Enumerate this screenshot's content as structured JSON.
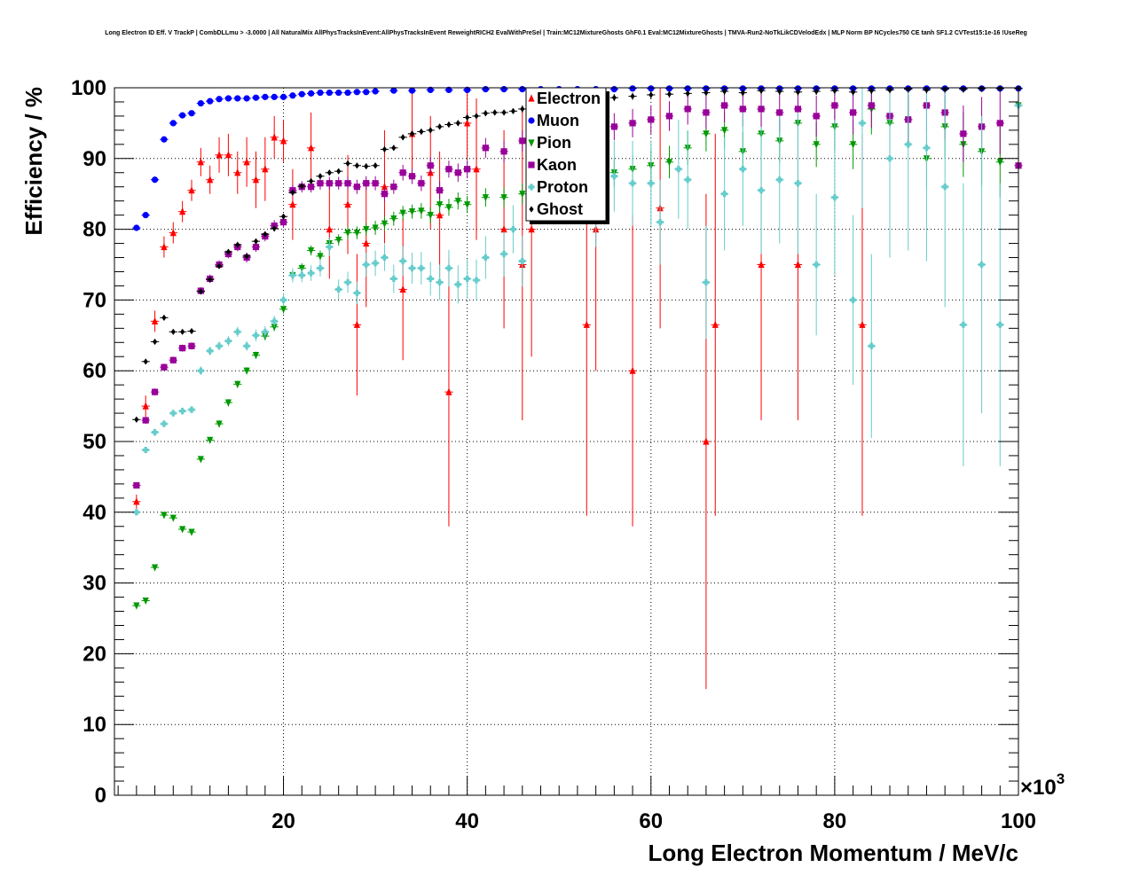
{
  "chart_data": {
    "type": "scatter",
    "title": "Long Electron ID Eff. V TrackP | CombDLLmu > -3.0000 | All NaturalMix AllPhysTracksInEvent:AllPhysTracksInEvent ReweightRICH2 EvalWithPreSel | Train:MC12MixtureGhosts GhF0.1 Eval:MC12MixtureGhosts | TMVA-Run2-NoTkLikCDVelodEdx | MLP Norm BP NCycles750 CE tanh SF1.2 CVTest15:1e-16 !UseReg",
    "xlabel": "Long Electron Momentum / MeV/c",
    "ylabel": "Efficiency / %",
    "x_multiplier": "×10",
    "x_multiplier_exp": "3",
    "xlim": [
      1.6,
      100
    ],
    "ylim": [
      0,
      100
    ],
    "xticks": [
      20,
      40,
      60,
      80,
      100
    ],
    "yticks": [
      0,
      10,
      20,
      30,
      40,
      50,
      60,
      70,
      80,
      90,
      100
    ],
    "grid": true,
    "legend_position": "top-center",
    "series": [
      {
        "name": "Electron",
        "color": "#ff0000",
        "marker": "triangle-up",
        "x": [
          4,
          5,
          6,
          7,
          8,
          9,
          10,
          11,
          12,
          13,
          14,
          15,
          16,
          17,
          18,
          19,
          20,
          21,
          23,
          25,
          27,
          28,
          29,
          31,
          33,
          34,
          36,
          37,
          38,
          40,
          41,
          44,
          46,
          47,
          53,
          54,
          58,
          61,
          66,
          67,
          72,
          76,
          83
        ],
        "y": [
          41.5,
          55,
          67,
          77.5,
          79.5,
          82.5,
          85.5,
          89.5,
          87,
          90.5,
          90.5,
          88,
          89.5,
          87,
          88.5,
          93,
          92.5,
          83.5,
          91.5,
          80,
          83.5,
          66.5,
          78,
          86,
          71.5,
          93.5,
          88,
          82,
          57,
          95,
          88.5,
          80,
          75,
          80,
          66.5,
          80,
          60,
          83,
          50,
          66.5,
          75,
          75,
          66.5
        ],
        "err": [
          1,
          1.5,
          1.5,
          1.5,
          1.5,
          1.5,
          1.5,
          2,
          2,
          2.5,
          3,
          3,
          3.5,
          4,
          4.5,
          3,
          3,
          5,
          5,
          7,
          7,
          10,
          9,
          8,
          10,
          6,
          8,
          9,
          19,
          5,
          10,
          14,
          22,
          18,
          27,
          20,
          22,
          17,
          35,
          27,
          22,
          22,
          27
        ]
      },
      {
        "name": "Muon",
        "color": "#0000ff",
        "marker": "circle",
        "x": [
          4,
          5,
          6,
          7,
          8,
          9,
          10,
          11,
          12,
          13,
          14,
          15,
          16,
          17,
          18,
          19,
          20,
          21,
          22,
          23,
          24,
          25,
          26,
          27,
          28,
          29,
          30,
          32,
          34,
          36,
          38,
          40,
          42,
          44,
          46,
          48,
          50,
          52,
          54,
          56,
          58,
          60,
          62,
          64,
          66,
          68,
          70,
          72,
          74,
          76,
          78,
          80,
          82,
          84,
          86,
          88,
          90,
          92,
          94,
          96,
          98,
          100
        ],
        "y": [
          80.2,
          82,
          87,
          92.7,
          95,
          96.1,
          96.4,
          97.8,
          98.1,
          98.4,
          98.5,
          98.5,
          98.5,
          98.6,
          98.7,
          98.7,
          98.7,
          98.9,
          99.1,
          99.2,
          99.3,
          99.3,
          99.3,
          99.3,
          99.4,
          99.4,
          99.5,
          99.6,
          99.6,
          99.7,
          99.7,
          99.7,
          99.8,
          99.8,
          99.8,
          99.8,
          99.8,
          99.8,
          99.8,
          99.8,
          99.9,
          99.9,
          99.9,
          99.9,
          99.9,
          99.9,
          99.9,
          99.9,
          99.9,
          99.9,
          99.9,
          99.9,
          99.9,
          99.9,
          99.9,
          99.9,
          99.9,
          99.9,
          99.9,
          99.9,
          99.9,
          99.9
        ],
        "err": [
          0.3,
          0.3,
          0.3,
          0.2,
          0.2,
          0.2,
          0.2,
          0.2,
          0.1,
          0.1,
          0.1,
          0.1,
          0.1,
          0.1,
          0.1,
          0.1,
          0.1,
          0.1,
          0.1,
          0.1,
          0.1,
          0.1,
          0.1,
          0.1,
          0.1,
          0.1,
          0.1,
          0.1,
          0.1,
          0.1,
          0.1,
          0.1,
          0.1,
          0.1,
          0.1,
          0.1,
          0.1,
          0.1,
          0.1,
          0.1,
          0.1,
          0.1,
          0.1,
          0.1,
          0.1,
          0.1,
          0.1,
          0.1,
          0.1,
          0.1,
          0.1,
          0.1,
          0.1,
          0.1,
          0.1,
          0.1,
          0.1,
          0.1,
          0.1,
          0.1,
          0.1,
          0.1
        ]
      },
      {
        "name": "Pion",
        "color": "#009900",
        "marker": "triangle-down",
        "x": [
          4,
          5,
          6,
          7,
          8,
          9,
          10,
          11,
          12,
          13,
          14,
          15,
          16,
          17,
          18,
          19,
          20,
          21,
          22,
          23,
          24,
          25,
          26,
          27,
          28,
          29,
          30,
          31,
          32,
          33,
          34,
          35,
          36,
          37,
          38,
          39,
          40,
          42,
          44,
          46,
          48,
          50,
          54,
          56,
          58,
          60,
          62,
          64,
          66,
          68,
          70,
          72,
          74,
          76,
          78,
          80,
          82,
          84,
          86,
          88,
          90,
          92,
          94,
          96,
          98,
          100
        ],
        "y": [
          26.8,
          27.5,
          32.2,
          39.6,
          39.2,
          37.6,
          37.2,
          47.5,
          50.2,
          52.5,
          55.5,
          58.1,
          60,
          62.2,
          64.9,
          66.2,
          68.7,
          73.5,
          74.5,
          77,
          76.2,
          78,
          78.5,
          79.5,
          79.5,
          80,
          80.2,
          80.8,
          81.5,
          82.3,
          82.5,
          82.6,
          82,
          83.5,
          83.1,
          84,
          83.5,
          84.5,
          84.5,
          85,
          86,
          86.5,
          87,
          88,
          88.5,
          89,
          89.5,
          91.5,
          93.5,
          94,
          91,
          93.5,
          92.5,
          95,
          92,
          94.5,
          92,
          97,
          95,
          95.5,
          90,
          94.5,
          92,
          91,
          89.5,
          97.5
        ],
        "err": [
          0.3,
          0.3,
          0.4,
          0.4,
          0.4,
          0.4,
          0.4,
          0.4,
          0.4,
          0.5,
          0.5,
          0.5,
          0.5,
          0.5,
          0.6,
          0.6,
          0.6,
          0.7,
          0.7,
          0.7,
          0.8,
          0.8,
          0.8,
          0.9,
          0.9,
          0.9,
          1,
          1,
          1,
          1,
          1,
          1.1,
          1.1,
          1.1,
          1.2,
          1.2,
          1.2,
          1.3,
          1.4,
          1.5,
          1.6,
          1.7,
          1.9,
          2,
          2,
          2.2,
          2.3,
          2.4,
          2.5,
          2.6,
          2.8,
          2.9,
          3,
          3.1,
          3.2,
          3.4,
          3.5,
          3.6,
          3.8,
          4,
          4.2,
          4.4,
          4.6,
          4.8,
          5,
          5
        ]
      },
      {
        "name": "Kaon",
        "color": "#990099",
        "marker": "square",
        "x": [
          4,
          5,
          6,
          7,
          8,
          9,
          10,
          11,
          12,
          13,
          14,
          15,
          16,
          17,
          18,
          19,
          20,
          21,
          22,
          23,
          24,
          25,
          26,
          27,
          28,
          29,
          30,
          31,
          32,
          33,
          34,
          35,
          36,
          37,
          38,
          39,
          40,
          42,
          44,
          46,
          48,
          50,
          54,
          56,
          58,
          60,
          62,
          64,
          66,
          68,
          70,
          72,
          74,
          76,
          78,
          80,
          82,
          84,
          86,
          88,
          90,
          92,
          94,
          96,
          98,
          100
        ],
        "y": [
          43.8,
          53,
          57,
          60.5,
          61.5,
          63.2,
          63.5,
          71.3,
          73,
          75,
          76.5,
          77.5,
          76,
          77.5,
          79,
          80.5,
          81,
          85.5,
          86,
          86,
          86.5,
          86.5,
          86.5,
          86.5,
          86,
          86.5,
          86.5,
          85,
          86,
          88,
          87.5,
          86.5,
          89,
          85.5,
          88.5,
          88,
          88.5,
          91.5,
          91,
          92.5,
          93,
          94,
          95,
          94.5,
          95,
          95.5,
          96,
          97,
          96.5,
          97.5,
          97,
          97,
          96.5,
          97,
          96,
          97.5,
          96.5,
          97.5,
          96,
          95.5,
          97.5,
          96.5,
          93.5,
          94.5,
          95,
          89
        ],
        "err": [
          0.4,
          0.5,
          0.5,
          0.5,
          0.5,
          0.5,
          0.5,
          0.5,
          0.6,
          0.6,
          0.6,
          0.6,
          0.7,
          0.7,
          0.7,
          0.8,
          0.8,
          0.8,
          0.8,
          0.8,
          0.9,
          0.9,
          0.9,
          0.9,
          1,
          1,
          1,
          1,
          1,
          1.1,
          1.1,
          1.1,
          1.2,
          1.2,
          1.2,
          1.3,
          1.3,
          1.4,
          1.5,
          1.5,
          1.6,
          1.7,
          1.8,
          1.9,
          2,
          2,
          2.1,
          2.2,
          2.3,
          2.4,
          2.5,
          2.6,
          2.7,
          2.8,
          2.9,
          3,
          3.1,
          3.2,
          3.4,
          3.5,
          3.6,
          3.8,
          4,
          4.2,
          4.4,
          5
        ]
      },
      {
        "name": "Proton",
        "color": "#66cccc",
        "marker": "cross",
        "x": [
          4,
          5,
          6,
          7,
          8,
          9,
          10,
          11,
          12,
          13,
          14,
          15,
          16,
          17,
          18,
          19,
          20,
          21,
          22,
          23,
          24,
          25,
          26,
          27,
          28,
          29,
          30,
          31,
          32,
          33,
          34,
          35,
          36,
          37,
          38,
          39,
          40,
          41,
          42,
          44,
          45,
          46,
          50,
          54,
          56,
          58,
          60,
          61,
          63,
          64,
          66,
          68,
          70,
          72,
          74,
          76,
          78,
          80,
          82,
          83,
          84,
          86,
          88,
          90,
          92,
          94,
          96,
          98,
          100
        ],
        "y": [
          40,
          48.8,
          51.3,
          52.5,
          54,
          54.3,
          54.5,
          60,
          62.8,
          63.5,
          64.2,
          65.5,
          63.5,
          65,
          65.5,
          67,
          70,
          73.5,
          73.5,
          73.8,
          74.5,
          77.5,
          71.5,
          72.5,
          71,
          75,
          75.2,
          76,
          73,
          75.5,
          74.5,
          74.5,
          73,
          72.5,
          74.5,
          72.2,
          73,
          72.8,
          76,
          76.5,
          80,
          75.5,
          88.5,
          82.5,
          87.5,
          86.5,
          86.5,
          81,
          88.5,
          87,
          72.5,
          85,
          88.5,
          85.5,
          87,
          86.5,
          75,
          84.5,
          70,
          95,
          63.5,
          90,
          92,
          91.5,
          86,
          66.5,
          75,
          66.5,
          97.5
        ],
        "err": [
          0.4,
          0.4,
          0.5,
          0.5,
          0.5,
          0.5,
          0.5,
          0.6,
          0.6,
          0.6,
          0.7,
          0.7,
          0.7,
          0.8,
          0.8,
          0.8,
          0.9,
          1,
          1,
          1.1,
          1.2,
          1.3,
          1.4,
          1.5,
          1.6,
          1.7,
          1.8,
          1.9,
          2,
          2.1,
          2.2,
          2.3,
          2.4,
          2.5,
          2.6,
          2.7,
          2.8,
          2.9,
          3,
          3.2,
          3.4,
          3.6,
          4,
          5,
          5,
          6,
          6,
          6,
          7,
          7,
          8,
          8,
          8,
          9,
          9,
          10,
          10,
          11,
          12,
          12,
          13,
          14,
          15,
          16,
          17,
          20,
          21,
          20,
          3
        ]
      },
      {
        "name": "Ghost",
        "color": "#000000",
        "marker": "diamond",
        "x": [
          4,
          5,
          6,
          7,
          8,
          9,
          10,
          11,
          12,
          13,
          14,
          15,
          16,
          17,
          18,
          19,
          20,
          21,
          22,
          23,
          24,
          25,
          26,
          27,
          28,
          29,
          30,
          31,
          32,
          33,
          34,
          35,
          36,
          37,
          38,
          39,
          40,
          41,
          42,
          43,
          44,
          45,
          46,
          47,
          48,
          50,
          52,
          54,
          56,
          58,
          60,
          62,
          64,
          66,
          68,
          70,
          72,
          74,
          76,
          78,
          80,
          82,
          84,
          86,
          88,
          90,
          92,
          94,
          96,
          98,
          100
        ],
        "y": [
          53.1,
          61.3,
          64.1,
          67.5,
          65.5,
          65.5,
          65.6,
          71.2,
          72.9,
          74.8,
          76.8,
          77.8,
          76.2,
          78.3,
          79.3,
          80.1,
          81.8,
          85.2,
          86.1,
          86.8,
          87.5,
          88,
          88.2,
          89.3,
          89,
          88.9,
          89,
          91.3,
          91.5,
          93,
          93.5,
          93.8,
          94,
          94.5,
          94.8,
          95,
          95.8,
          96,
          96.4,
          96.5,
          96.5,
          96.7,
          97,
          97.2,
          97.8,
          98.1,
          98.3,
          98.5,
          98.6,
          98.8,
          99,
          99.1,
          99.2,
          99.3,
          99.5,
          99.3,
          99.6,
          99.5,
          99.4,
          99.5,
          99.6,
          99.4,
          99.6,
          99.7,
          99.8,
          99.7,
          99.8,
          99.8,
          99.9,
          99.9,
          99.9
        ],
        "err": [
          0.3,
          0.3,
          0.3,
          0.3,
          0.3,
          0.3,
          0.3,
          0.3,
          0.3,
          0.3,
          0.3,
          0.3,
          0.3,
          0.3,
          0.3,
          0.3,
          0.3,
          0.3,
          0.3,
          0.3,
          0.3,
          0.3,
          0.3,
          0.3,
          0.3,
          0.4,
          0.4,
          0.4,
          0.4,
          0.4,
          0.4,
          0.4,
          0.4,
          0.4,
          0.4,
          0.4,
          0.4,
          0.4,
          0.4,
          0.4,
          0.4,
          0.4,
          0.5,
          0.5,
          0.5,
          0.5,
          0.5,
          0.5,
          0.5,
          0.5,
          0.5,
          0.5,
          0.5,
          0.5,
          0.5,
          0.5,
          0.5,
          0.5,
          0.5,
          0.5,
          0.5,
          0.5,
          0.5,
          0.5,
          0.5,
          0.5,
          0.5,
          0.5,
          0.5,
          0.5,
          0.5
        ]
      }
    ]
  }
}
